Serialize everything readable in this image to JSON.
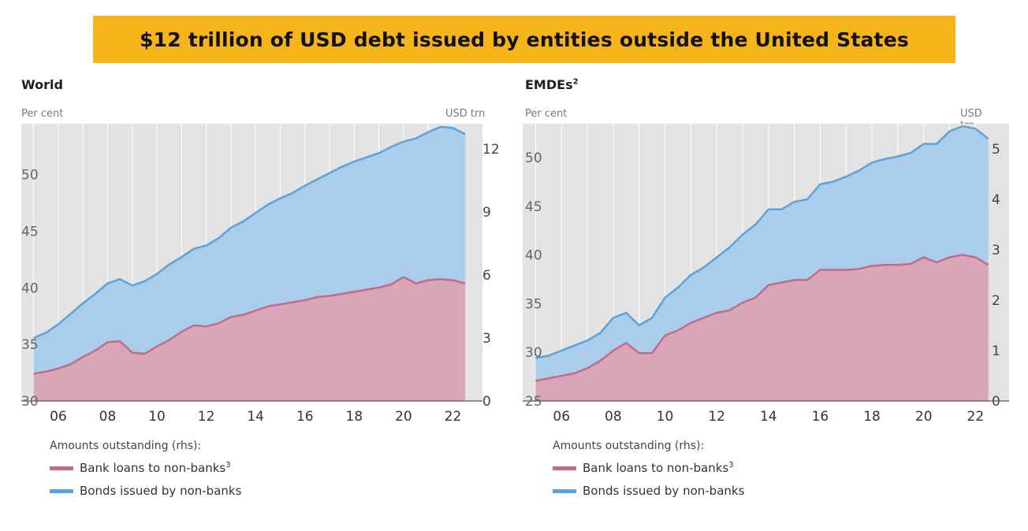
{
  "banner": {
    "title": "$12 trillion of USD debt issued by entities outside the United States"
  },
  "legend_text": {
    "head": "Amounts outstanding (rhs):",
    "bank": "Bank loans to non-banks",
    "bank_footnote": "3",
    "bonds": "Bonds issued by non-banks"
  },
  "colors": {
    "banner": "#f4b41a",
    "plot_bg": "#e3e3e3",
    "bank_fill": "#d8a6b7",
    "bank_line": "#c26b8a",
    "bonds_fill": "#a9cdea",
    "bonds_line": "#5aa3dc"
  },
  "chart_data": [
    {
      "type": "area",
      "stacked": true,
      "title": "World",
      "title_footnote": "",
      "ylabel_left": "Per cent",
      "ylabel_right": "USD trn",
      "x_ticks": [
        "06",
        "08",
        "10",
        "12",
        "14",
        "16",
        "18",
        "20",
        "22"
      ],
      "ylim_left": [
        30,
        54.5
      ],
      "yticks_left": [
        "30",
        "35",
        "40",
        "45",
        "50"
      ],
      "ylim_right": [
        0,
        13.2
      ],
      "yticks_right": [
        "0",
        "3",
        "6",
        "9",
        "12"
      ],
      "x": [
        "2005Q1",
        "2005Q3",
        "2006Q1",
        "2006Q3",
        "2007Q1",
        "2007Q3",
        "2008Q1",
        "2008Q3",
        "2009Q1",
        "2009Q3",
        "2010Q1",
        "2010Q3",
        "2011Q1",
        "2011Q3",
        "2012Q1",
        "2012Q3",
        "2013Q1",
        "2013Q3",
        "2014Q1",
        "2014Q3",
        "2015Q1",
        "2015Q3",
        "2016Q1",
        "2016Q3",
        "2017Q1",
        "2017Q3",
        "2018Q1",
        "2018Q3",
        "2019Q1",
        "2019Q3",
        "2020Q1",
        "2020Q3",
        "2021Q1",
        "2021Q3",
        "2022Q1",
        "2022Q3"
      ],
      "series": [
        {
          "name": "Bank loans to non-banks",
          "values": [
            1.3,
            1.4,
            1.55,
            1.75,
            2.1,
            2.4,
            2.8,
            2.85,
            2.3,
            2.25,
            2.6,
            2.9,
            3.3,
            3.6,
            3.55,
            3.7,
            4.0,
            4.1,
            4.3,
            4.5,
            4.6,
            4.7,
            4.8,
            4.95,
            5.0,
            5.1,
            5.2,
            5.3,
            5.4,
            5.55,
            5.9,
            5.6,
            5.75,
            5.8,
            5.75,
            5.6
          ]
        },
        {
          "name": "Bonds issued by non-banks",
          "values": [
            1.7,
            1.85,
            2.1,
            2.4,
            2.55,
            2.7,
            2.8,
            2.95,
            3.2,
            3.45,
            3.45,
            3.6,
            3.55,
            3.65,
            3.85,
            4.05,
            4.25,
            4.45,
            4.65,
            4.85,
            5.05,
            5.2,
            5.45,
            5.6,
            5.85,
            6.05,
            6.2,
            6.3,
            6.4,
            6.55,
            6.45,
            6.9,
            7.05,
            7.25,
            7.25,
            7.1
          ]
        }
      ]
    },
    {
      "type": "area",
      "stacked": true,
      "title": "EMDEs",
      "title_footnote": "2",
      "ylabel_left": "Per cent",
      "ylabel_right": "USD trn",
      "x_ticks": [
        "06",
        "08",
        "10",
        "12",
        "14",
        "16",
        "18",
        "20",
        "22"
      ],
      "ylim_left": [
        25,
        53.5
      ],
      "yticks_left": [
        "25",
        "30",
        "35",
        "40",
        "45",
        "50"
      ],
      "ylim_right": [
        0,
        5.5
      ],
      "yticks_right": [
        "0",
        "1",
        "2",
        "3",
        "4",
        "5"
      ],
      "x": [
        "2005Q1",
        "2005Q3",
        "2006Q1",
        "2006Q3",
        "2007Q1",
        "2007Q3",
        "2008Q1",
        "2008Q3",
        "2009Q1",
        "2009Q3",
        "2010Q1",
        "2010Q3",
        "2011Q1",
        "2011Q3",
        "2012Q1",
        "2012Q3",
        "2013Q1",
        "2013Q3",
        "2014Q1",
        "2014Q3",
        "2015Q1",
        "2015Q3",
        "2016Q1",
        "2016Q3",
        "2017Q1",
        "2017Q3",
        "2018Q1",
        "2018Q3",
        "2019Q1",
        "2019Q3",
        "2020Q1",
        "2020Q3",
        "2021Q1",
        "2021Q3",
        "2022Q1",
        "2022Q3"
      ],
      "series": [
        {
          "name": "Bank loans to non-banks",
          "values": [
            0.4,
            0.45,
            0.5,
            0.55,
            0.65,
            0.8,
            1.0,
            1.15,
            0.95,
            0.95,
            1.3,
            1.4,
            1.55,
            1.65,
            1.75,
            1.8,
            1.95,
            2.05,
            2.3,
            2.35,
            2.4,
            2.4,
            2.6,
            2.6,
            2.6,
            2.62,
            2.68,
            2.7,
            2.7,
            2.72,
            2.85,
            2.75,
            2.85,
            2.9,
            2.85,
            2.7
          ]
        },
        {
          "name": "Bonds issued by non-banks",
          "values": [
            0.45,
            0.45,
            0.5,
            0.55,
            0.55,
            0.55,
            0.65,
            0.6,
            0.55,
            0.7,
            0.75,
            0.85,
            0.95,
            1.0,
            1.1,
            1.25,
            1.35,
            1.45,
            1.5,
            1.45,
            1.55,
            1.6,
            1.7,
            1.75,
            1.85,
            1.95,
            2.05,
            2.1,
            2.15,
            2.2,
            2.25,
            2.35,
            2.5,
            2.55,
            2.55,
            2.5
          ]
        }
      ]
    }
  ]
}
